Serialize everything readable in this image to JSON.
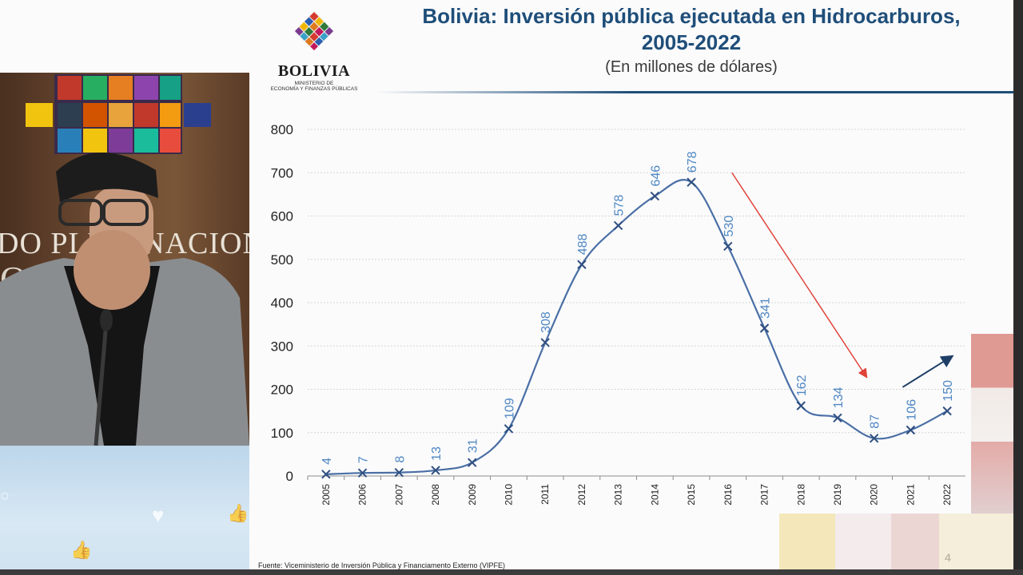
{
  "slide": {
    "title": "Bolivia: Inversión pública ejecutada en Hidrocarburos, 2005-2022",
    "subtitle": "(En millones de dólares)",
    "source": "Fuente: Viceministerio de Inversión Pública y Financiamento Externo (VIPFE)",
    "page_number": "4",
    "logo": {
      "country": "BOLIVIA",
      "ministry": "MINISTERIO DE\nECONOMÍA Y FINANZAS PÚBLICAS"
    }
  },
  "webcam": {
    "wall_text": "DO PLURINACIONA",
    "wall_text2": "OLVI"
  },
  "chart_data": {
    "type": "line",
    "title": "Bolivia: Inversión pública ejecutada en Hidrocarburos, 2005-2022",
    "subtitle": "(En millones de dólares)",
    "categories": [
      "2005",
      "2006",
      "2007",
      "2008",
      "2009",
      "2010",
      "2011",
      "2012",
      "2013",
      "2014",
      "2015",
      "2016",
      "2017",
      "2018",
      "2019",
      "2020",
      "2021",
      "2022"
    ],
    "series": [
      {
        "values": [
          4,
          7,
          8,
          13,
          31,
          109,
          308,
          488,
          578,
          646,
          678,
          530,
          341,
          162,
          134,
          87,
          106,
          150
        ]
      }
    ],
    "ylim": [
      0,
      800
    ],
    "yticks": [
      0,
      100,
      200,
      300,
      400,
      500,
      600,
      700,
      800
    ],
    "grid": true,
    "colors": {
      "line": "#4a6fa5",
      "labels": "#4f87c2",
      "arrow_down": "#e0433a",
      "arrow_up": "#1f3f66"
    },
    "annotations": [
      {
        "type": "arrow",
        "color": "red",
        "from": [
          "2016",
          700
        ],
        "to": [
          "2020",
          230
        ]
      },
      {
        "type": "arrow",
        "color": "navy",
        "from": [
          "2021",
          205
        ],
        "to": [
          "2022",
          275
        ]
      }
    ]
  }
}
